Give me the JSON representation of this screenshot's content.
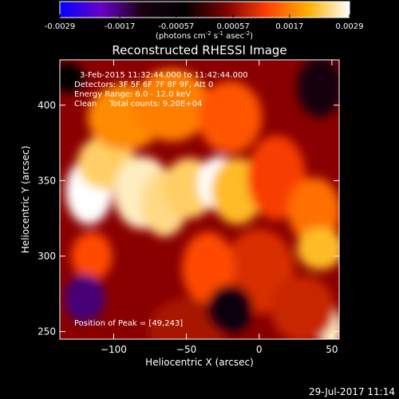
{
  "colorbar": {
    "ticks": [
      "-0.0029",
      "-0.0017",
      "-0.00057",
      "0.00057",
      "0.0017",
      "0.0029"
    ],
    "tick_values": [
      -0.0029,
      -0.0017,
      -0.00057,
      0.00057,
      0.0017,
      0.0029
    ],
    "range": [
      -0.0029,
      0.0029
    ],
    "unit_parts": {
      "a": "(photons cm",
      "b": "-2",
      "c": " s",
      "d": "-1",
      "e": " asec",
      "f": "-2",
      "g": ")"
    },
    "colors": [
      "#0000ff",
      "#6a00c8",
      "#1a0010",
      "#000000",
      "#7a0000",
      "#ff4000",
      "#ffb000",
      "#ffffff"
    ]
  },
  "chart_data": {
    "type": "heatmap",
    "title": "Reconstructed RHESSI Image",
    "xlabel": "Heliocentric X (arcsec)",
    "ylabel": "Heliocentric Y (arcsec)",
    "xlim": [
      -137,
      55
    ],
    "ylim": [
      245,
      430
    ],
    "x_ticks": [
      -100,
      -50,
      0,
      50
    ],
    "y_ticks": [
      250,
      300,
      350,
      400
    ],
    "x_tick_labels": [
      "−100",
      "−50",
      "0",
      "50"
    ],
    "y_tick_labels": [
      "250",
      "300",
      "350",
      "400"
    ],
    "info_lines": [
      "3-Feb-2015 11:32:44.000 to 11:42:44.000",
      "Detectors: 3F 5F 6F 7F 8F 9F, Att 0",
      "Energy Range: 6.0 - 12.0 keV",
      "Clean     Total counts: 9.20E+04"
    ],
    "peak_label": "Position of Peak = [49,243]",
    "peak": [
      49,
      243
    ],
    "emission_blobs": [
      {
        "x": -117,
        "y": 343,
        "w": 16,
        "h": 22,
        "value": 0.0029
      },
      {
        "x": -105,
        "y": 362,
        "w": 20,
        "h": 18,
        "value": 0.0024
      },
      {
        "x": -80,
        "y": 342,
        "w": 20,
        "h": 24,
        "value": 0.0027
      },
      {
        "x": -65,
        "y": 335,
        "w": 16,
        "h": 22,
        "value": 0.0025
      },
      {
        "x": -48,
        "y": 345,
        "w": 18,
        "h": 20,
        "value": 0.0024
      },
      {
        "x": -28,
        "y": 348,
        "w": 14,
        "h": 18,
        "value": 0.0029
      },
      {
        "x": -15,
        "y": 343,
        "w": 18,
        "h": 22,
        "value": 0.0022
      },
      {
        "x": -92,
        "y": 392,
        "w": 26,
        "h": 22,
        "value": 0.0018
      },
      {
        "x": -60,
        "y": 400,
        "w": 26,
        "h": 24,
        "value": 0.0017
      },
      {
        "x": -20,
        "y": 392,
        "w": 22,
        "h": 24,
        "value": 0.0014
      },
      {
        "x": 12,
        "y": 352,
        "w": 20,
        "h": 28,
        "value": 0.0012
      },
      {
        "x": 38,
        "y": 330,
        "w": 18,
        "h": 22,
        "value": 0.0016
      },
      {
        "x": 42,
        "y": 305,
        "w": 16,
        "h": 14,
        "value": 0.0022
      },
      {
        "x": 0,
        "y": 290,
        "w": 24,
        "h": 28,
        "value": 0.001
      },
      {
        "x": -35,
        "y": 292,
        "w": 18,
        "h": 24,
        "value": 0.0013
      },
      {
        "x": -115,
        "y": 300,
        "w": 14,
        "h": 16,
        "value": 0.0013
      },
      {
        "x": 49,
        "y": 252,
        "w": 8,
        "h": 14,
        "value": 0.0027
      },
      {
        "x": 30,
        "y": 265,
        "w": 22,
        "h": 22,
        "value": 0.0009
      },
      {
        "x": -50,
        "y": 250,
        "w": 26,
        "h": 22,
        "value": 0.0007
      },
      {
        "x": -120,
        "y": 272,
        "w": 14,
        "h": 16,
        "value": -0.0017
      },
      {
        "x": -20,
        "y": 265,
        "w": 16,
        "h": 16,
        "value": -0.0008
      },
      {
        "x": 42,
        "y": 412,
        "w": 16,
        "h": 20,
        "value": -0.0012
      },
      {
        "x": -132,
        "y": 418,
        "w": 12,
        "h": 10,
        "value": -0.0004
      }
    ]
  },
  "footer": {
    "timestamp": "29-Jul-2017 11:14"
  }
}
